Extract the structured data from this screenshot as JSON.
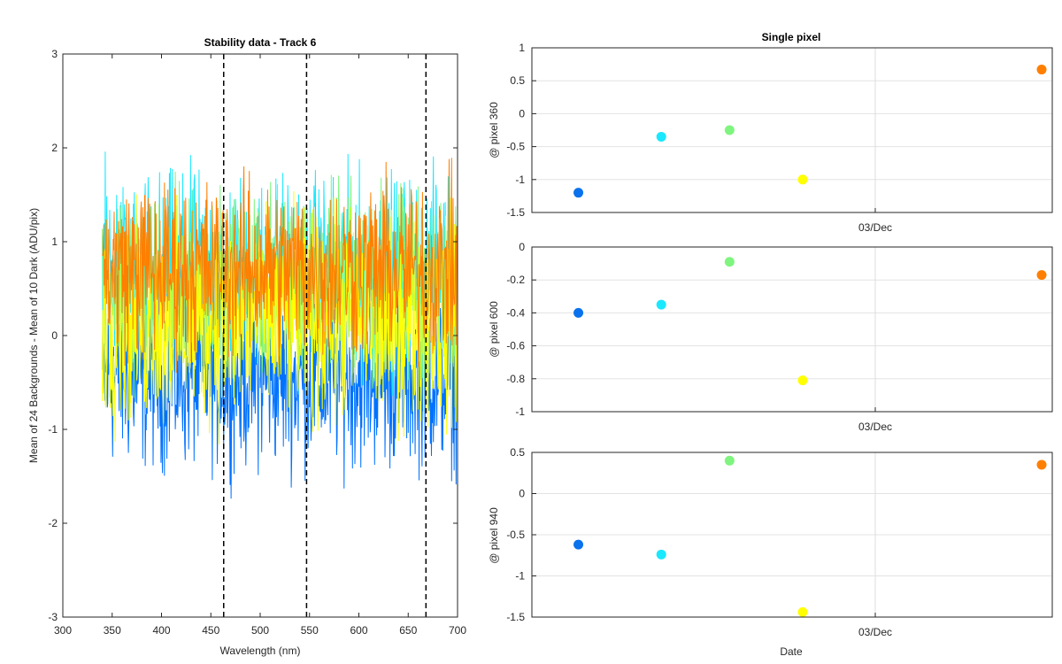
{
  "chart_data": [
    {
      "type": "line",
      "title": "Stability data - Track 6",
      "xlabel": "Wavelength (nm)",
      "ylabel": "Mean of 24 Backgrounds - Mean of 10 Dark (ADU/pix)",
      "xlim": [
        300,
        700
      ],
      "ylim": [
        -3,
        3
      ],
      "xticks": [
        300,
        350,
        400,
        450,
        500,
        550,
        600,
        650,
        700
      ],
      "yticks": [
        -3,
        -2,
        -1,
        0,
        1,
        2,
        3
      ],
      "grid": false,
      "series": [
        {
          "color": "#0072ff",
          "mean": -0.45,
          "amplitude": 0.85,
          "x_start": 340,
          "x_end": 700
        },
        {
          "color": "#19e8ff",
          "mean": 0.65,
          "amplitude": 0.95,
          "x_start": 340,
          "x_end": 700
        },
        {
          "color": "#7ff57f",
          "mean": 0.55,
          "amplitude": 0.9,
          "x_start": 340,
          "x_end": 700
        },
        {
          "color": "#ffff00",
          "mean": 0.15,
          "amplitude": 1.0,
          "x_start": 340,
          "x_end": 700
        },
        {
          "color": "#ff7f00",
          "mean": 0.7,
          "amplitude": 0.85,
          "x_start": 340,
          "x_end": 700
        }
      ],
      "vlines": [
        463,
        547,
        668
      ]
    },
    {
      "type": "scatter",
      "title": "Single pixel",
      "ylabel": "@ pixel 360",
      "ylim": [
        -1.5,
        1
      ],
      "yticks": [
        -1.5,
        -1,
        -0.5,
        0,
        0.5,
        1
      ],
      "xtick_labels": [
        "03/Dec"
      ],
      "grid": true,
      "points": [
        {
          "x": 0.05,
          "y": -1.2,
          "color": "#0a72ec"
        },
        {
          "x": 0.22,
          "y": -0.35,
          "color": "#19e8ff"
        },
        {
          "x": 0.36,
          "y": -0.25,
          "color": "#7ff57f"
        },
        {
          "x": 0.51,
          "y": -1.0,
          "color": "#ffff00"
        },
        {
          "x": 1.0,
          "y": 0.67,
          "color": "#ff7f00"
        }
      ]
    },
    {
      "type": "scatter",
      "ylabel": "@ pixel 600",
      "ylim": [
        -1,
        0
      ],
      "yticks": [
        -1,
        -0.8,
        -0.6,
        -0.4,
        -0.2,
        0
      ],
      "xtick_labels": [
        "03/Dec"
      ],
      "grid": true,
      "points": [
        {
          "x": 0.05,
          "y": -0.4,
          "color": "#0a72ec"
        },
        {
          "x": 0.22,
          "y": -0.35,
          "color": "#19e8ff"
        },
        {
          "x": 0.36,
          "y": -0.09,
          "color": "#7ff57f"
        },
        {
          "x": 0.51,
          "y": -0.81,
          "color": "#ffff00"
        },
        {
          "x": 1.0,
          "y": -0.17,
          "color": "#ff7f00"
        }
      ]
    },
    {
      "type": "scatter",
      "ylabel": "@ pixel 940",
      "xlabel": "Date",
      "ylim": [
        -1.5,
        0.5
      ],
      "yticks": [
        -1.5,
        -1,
        -0.5,
        0,
        0.5
      ],
      "xtick_labels": [
        "03/Dec"
      ],
      "grid": true,
      "points": [
        {
          "x": 0.05,
          "y": -0.62,
          "color": "#0a72ec"
        },
        {
          "x": 0.22,
          "y": -0.74,
          "color": "#19e8ff"
        },
        {
          "x": 0.36,
          "y": 0.4,
          "color": "#7ff57f"
        },
        {
          "x": 0.51,
          "y": -1.44,
          "color": "#ffff00"
        },
        {
          "x": 1.0,
          "y": 0.35,
          "color": "#ff7f00"
        }
      ]
    }
  ]
}
